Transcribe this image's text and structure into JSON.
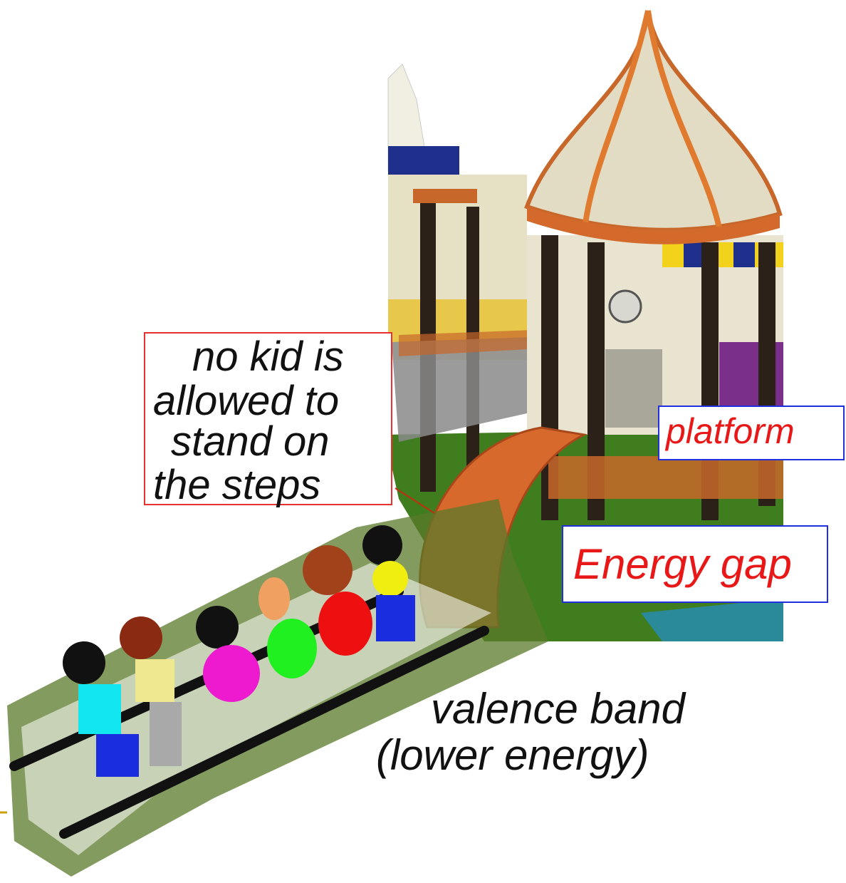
{
  "labels": {
    "rule": {
      "lines": [
        "no kid is",
        "allowed to",
        "stand on",
        "the steps"
      ]
    },
    "platform": "platform",
    "energy_gap": "Energy gap",
    "valence_band": {
      "lines": [
        "valence band",
        "(lower energy)"
      ]
    }
  }
}
